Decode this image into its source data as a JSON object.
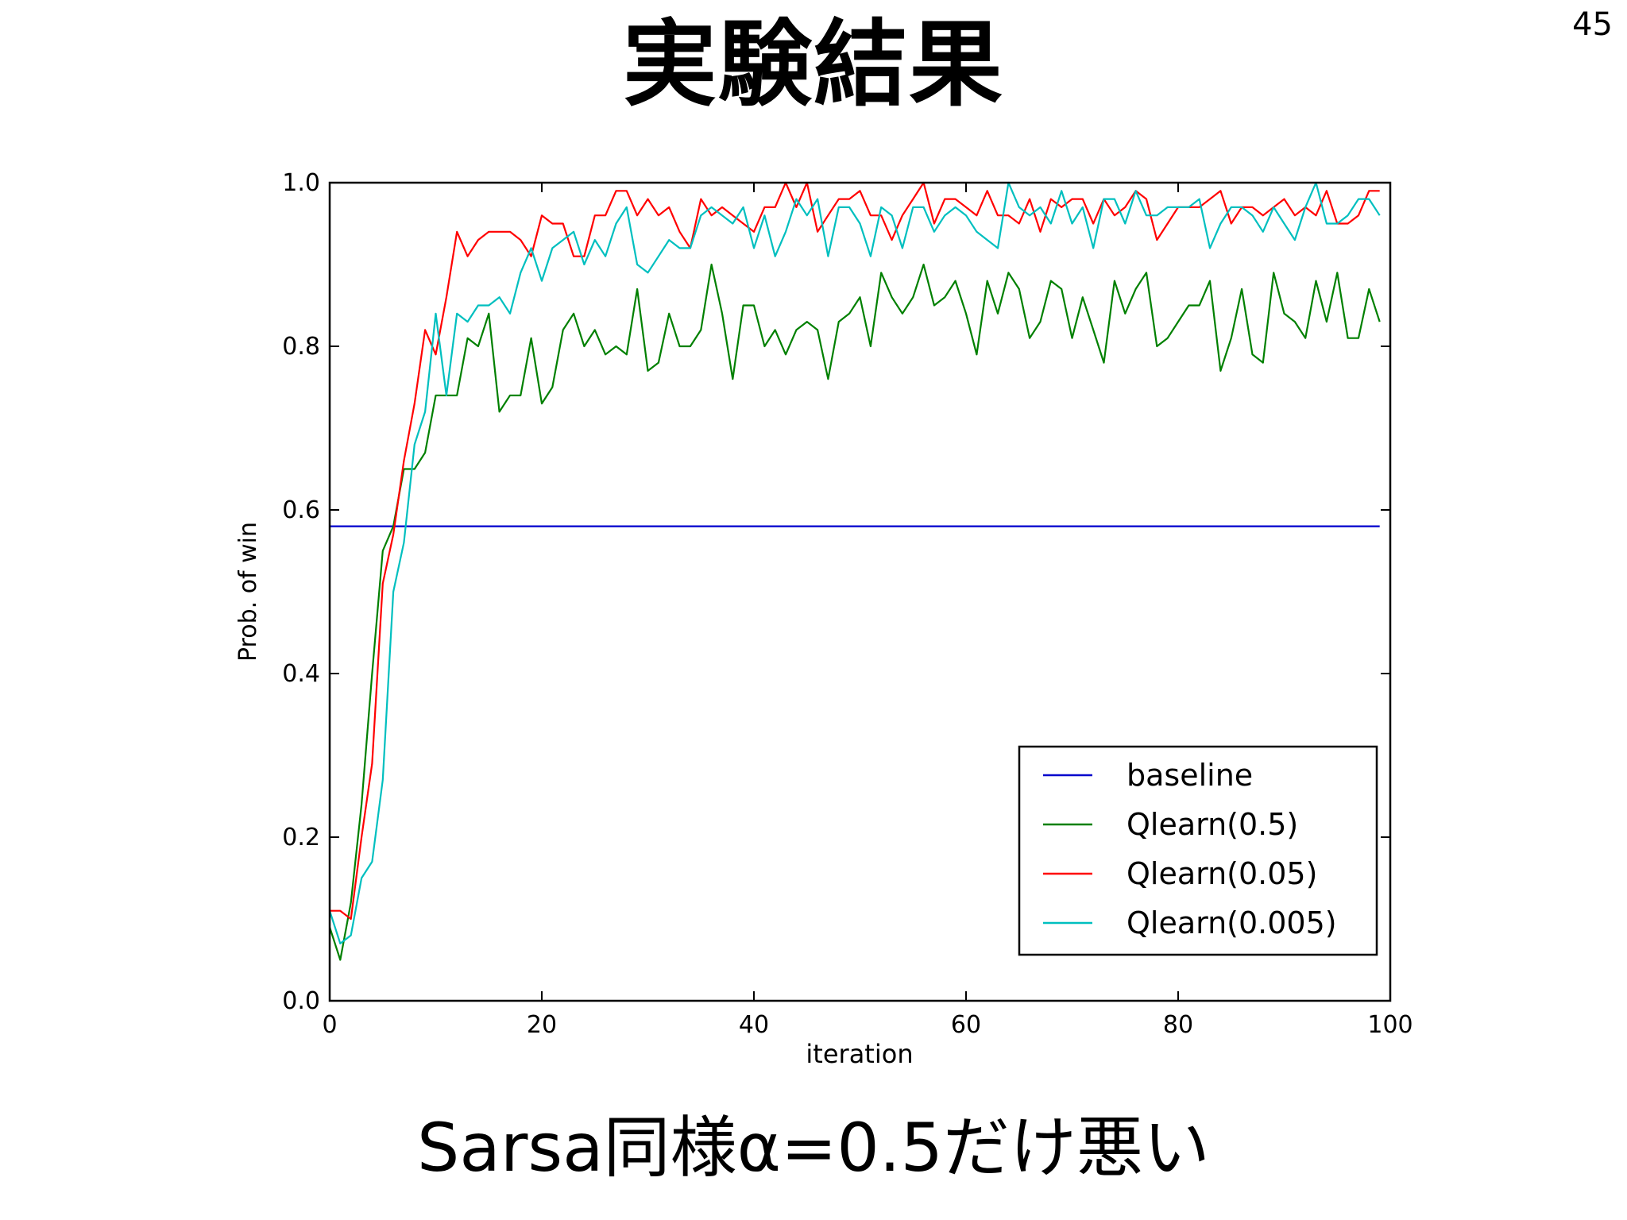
{
  "slide": {
    "title": "実験結果",
    "page_number": "45",
    "caption": "Sarsa同様α=0.5だけ悪い"
  },
  "chart_data": {
    "type": "line",
    "title": "",
    "xlabel": "iteration",
    "ylabel": "Prob. of win",
    "xlim": [
      0,
      100
    ],
    "ylim": [
      0.0,
      1.0
    ],
    "xticks": [
      0,
      20,
      40,
      60,
      80,
      100
    ],
    "yticks": [
      0.0,
      0.2,
      0.4,
      0.6,
      0.8,
      1.0
    ],
    "xtick_labels": [
      "0",
      "20",
      "40",
      "60",
      "80",
      "100"
    ],
    "ytick_labels": [
      "0.0",
      "0.2",
      "0.4",
      "0.6",
      "0.8",
      "1.0"
    ],
    "grid": false,
    "legend_position": "bottom-right",
    "series": [
      {
        "name": "baseline",
        "color": "#0000cc",
        "x": [
          0,
          99
        ],
        "y": [
          0.58,
          0.58
        ]
      },
      {
        "name": "Qlearn(0.5)",
        "color": "#008000",
        "x": [
          0,
          1,
          2,
          3,
          4,
          5,
          6,
          7,
          8,
          9,
          10,
          11,
          12,
          13,
          14,
          15,
          16,
          17,
          18,
          19,
          20,
          21,
          22,
          23,
          24,
          25,
          26,
          27,
          28,
          29,
          30,
          31,
          32,
          33,
          34,
          35,
          36,
          37,
          38,
          39,
          40,
          41,
          42,
          43,
          44,
          45,
          46,
          47,
          48,
          49,
          50,
          51,
          52,
          53,
          54,
          55,
          56,
          57,
          58,
          59,
          60,
          61,
          62,
          63,
          64,
          65,
          66,
          67,
          68,
          69,
          70,
          71,
          72,
          73,
          74,
          75,
          76,
          77,
          78,
          79,
          80,
          81,
          82,
          83,
          84,
          85,
          86,
          87,
          88,
          89,
          90,
          91,
          92,
          93,
          94,
          95,
          96,
          97,
          98,
          99
        ],
        "y": [
          0.09,
          0.05,
          0.12,
          0.24,
          0.4,
          0.55,
          0.58,
          0.65,
          0.65,
          0.67,
          0.74,
          0.74,
          0.74,
          0.81,
          0.8,
          0.84,
          0.72,
          0.74,
          0.74,
          0.81,
          0.73,
          0.75,
          0.82,
          0.84,
          0.8,
          0.82,
          0.79,
          0.8,
          0.79,
          0.87,
          0.77,
          0.78,
          0.84,
          0.8,
          0.8,
          0.82,
          0.9,
          0.84,
          0.76,
          0.85,
          0.85,
          0.8,
          0.82,
          0.79,
          0.82,
          0.83,
          0.82,
          0.76,
          0.83,
          0.84,
          0.86,
          0.8,
          0.89,
          0.86,
          0.84,
          0.86,
          0.9,
          0.85,
          0.86,
          0.88,
          0.84,
          0.79,
          0.88,
          0.84,
          0.89,
          0.87,
          0.81,
          0.83,
          0.88,
          0.87,
          0.81,
          0.86,
          0.82,
          0.78,
          0.88,
          0.84,
          0.87,
          0.89,
          0.8,
          0.81,
          0.83,
          0.85,
          0.85,
          0.88,
          0.77,
          0.81,
          0.87,
          0.79,
          0.78,
          0.89,
          0.84,
          0.83,
          0.81,
          0.88,
          0.83,
          0.89,
          0.81,
          0.81,
          0.87,
          0.83
        ]
      },
      {
        "name": "Qlearn(0.05)",
        "color": "#ff0000",
        "x": [
          0,
          1,
          2,
          3,
          4,
          5,
          6,
          7,
          8,
          9,
          10,
          11,
          12,
          13,
          14,
          15,
          16,
          17,
          18,
          19,
          20,
          21,
          22,
          23,
          24,
          25,
          26,
          27,
          28,
          29,
          30,
          31,
          32,
          33,
          34,
          35,
          36,
          37,
          38,
          39,
          40,
          41,
          42,
          43,
          44,
          45,
          46,
          47,
          48,
          49,
          50,
          51,
          52,
          53,
          54,
          55,
          56,
          57,
          58,
          59,
          60,
          61,
          62,
          63,
          64,
          65,
          66,
          67,
          68,
          69,
          70,
          71,
          72,
          73,
          74,
          75,
          76,
          77,
          78,
          79,
          80,
          81,
          82,
          83,
          84,
          85,
          86,
          87,
          88,
          89,
          90,
          91,
          92,
          93,
          94,
          95,
          96,
          97,
          98,
          99
        ],
        "y": [
          0.11,
          0.11,
          0.1,
          0.2,
          0.29,
          0.51,
          0.57,
          0.66,
          0.73,
          0.82,
          0.79,
          0.86,
          0.94,
          0.91,
          0.93,
          0.94,
          0.94,
          0.94,
          0.93,
          0.91,
          0.96,
          0.95,
          0.95,
          0.91,
          0.91,
          0.96,
          0.96,
          0.99,
          0.99,
          0.96,
          0.98,
          0.96,
          0.97,
          0.94,
          0.92,
          0.98,
          0.96,
          0.97,
          0.96,
          0.95,
          0.94,
          0.97,
          0.97,
          1.0,
          0.97,
          1.0,
          0.94,
          0.96,
          0.98,
          0.98,
          0.99,
          0.96,
          0.96,
          0.93,
          0.96,
          0.98,
          1.0,
          0.95,
          0.98,
          0.98,
          0.97,
          0.96,
          0.99,
          0.96,
          0.96,
          0.95,
          0.98,
          0.94,
          0.98,
          0.97,
          0.98,
          0.98,
          0.95,
          0.98,
          0.96,
          0.97,
          0.99,
          0.98,
          0.93,
          0.95,
          0.97,
          0.97,
          0.97,
          0.98,
          0.99,
          0.95,
          0.97,
          0.97,
          0.96,
          0.97,
          0.98,
          0.96,
          0.97,
          0.96,
          0.99,
          0.95,
          0.95,
          0.96,
          0.99,
          0.99
        ]
      },
      {
        "name": "Qlearn(0.005)",
        "color": "#00bfbf",
        "x": [
          0,
          1,
          2,
          3,
          4,
          5,
          6,
          7,
          8,
          9,
          10,
          11,
          12,
          13,
          14,
          15,
          16,
          17,
          18,
          19,
          20,
          21,
          22,
          23,
          24,
          25,
          26,
          27,
          28,
          29,
          30,
          31,
          32,
          33,
          34,
          35,
          36,
          37,
          38,
          39,
          40,
          41,
          42,
          43,
          44,
          45,
          46,
          47,
          48,
          49,
          50,
          51,
          52,
          53,
          54,
          55,
          56,
          57,
          58,
          59,
          60,
          61,
          62,
          63,
          64,
          65,
          66,
          67,
          68,
          69,
          70,
          71,
          72,
          73,
          74,
          75,
          76,
          77,
          78,
          79,
          80,
          81,
          82,
          83,
          84,
          85,
          86,
          87,
          88,
          89,
          90,
          91,
          92,
          93,
          94,
          95,
          96,
          97,
          98,
          99
        ],
        "y": [
          0.11,
          0.07,
          0.08,
          0.15,
          0.17,
          0.27,
          0.5,
          0.56,
          0.68,
          0.72,
          0.84,
          0.74,
          0.84,
          0.83,
          0.85,
          0.85,
          0.86,
          0.84,
          0.89,
          0.92,
          0.88,
          0.92,
          0.93,
          0.94,
          0.9,
          0.93,
          0.91,
          0.95,
          0.97,
          0.9,
          0.89,
          0.91,
          0.93,
          0.92,
          0.92,
          0.96,
          0.97,
          0.96,
          0.95,
          0.97,
          0.92,
          0.96,
          0.91,
          0.94,
          0.98,
          0.96,
          0.98,
          0.91,
          0.97,
          0.97,
          0.95,
          0.91,
          0.97,
          0.96,
          0.92,
          0.97,
          0.97,
          0.94,
          0.96,
          0.97,
          0.96,
          0.94,
          0.93,
          0.92,
          1.0,
          0.97,
          0.96,
          0.97,
          0.95,
          0.99,
          0.95,
          0.97,
          0.92,
          0.98,
          0.98,
          0.95,
          0.99,
          0.96,
          0.96,
          0.97,
          0.97,
          0.97,
          0.98,
          0.92,
          0.95,
          0.97,
          0.97,
          0.96,
          0.94,
          0.97,
          0.95,
          0.93,
          0.97,
          1.0,
          0.95,
          0.95,
          0.96,
          0.98,
          0.98,
          0.96
        ]
      }
    ]
  }
}
